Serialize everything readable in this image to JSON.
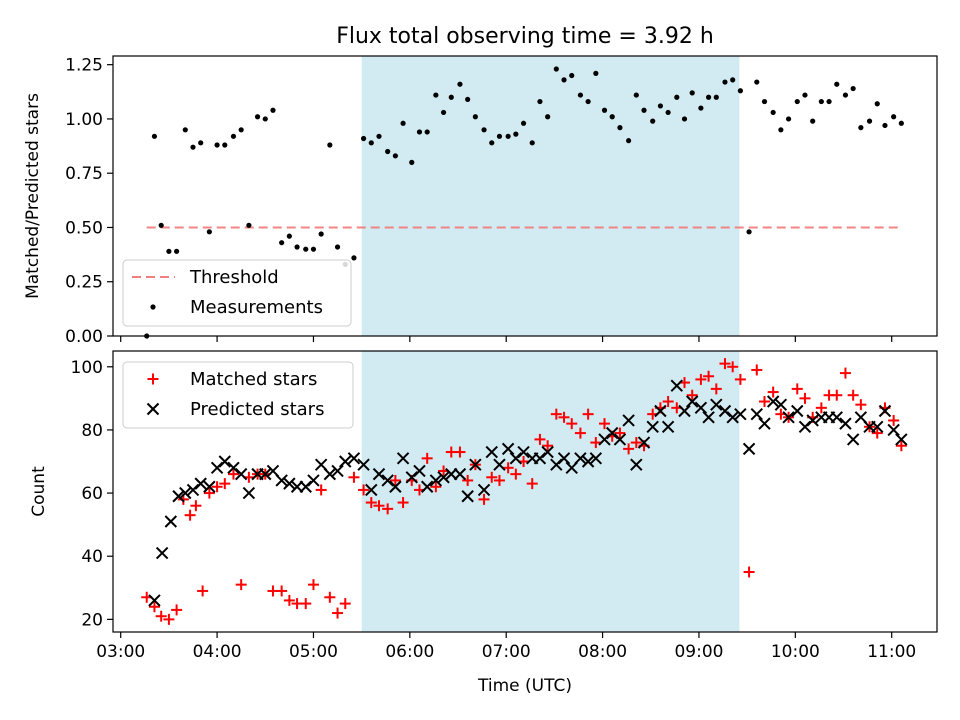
{
  "chart_data": {
    "title": "Flux total observing time = 3.92 h",
    "xlabel": "Time (UTC)",
    "x_tick_labels": [
      "03:00",
      "04:00",
      "05:00",
      "06:00",
      "07:00",
      "08:00",
      "09:00",
      "10:00",
      "11:00"
    ],
    "x_ticks_hours": [
      3,
      4,
      5,
      6,
      7,
      8,
      9,
      10,
      11
    ],
    "xlim_hours": [
      2.92,
      11.47
    ],
    "observing_window_hours": [
      5.5,
      9.42
    ],
    "shade_color": "#add8e6",
    "panels": [
      {
        "type": "scatter",
        "ylabel": "Matched/Predicted stars",
        "ylim": [
          0,
          1.29
        ],
        "y_ticks": [
          0.0,
          0.25,
          0.5,
          0.75,
          1.0,
          1.25
        ],
        "y_tick_labels": [
          "0.00",
          "0.25",
          "0.50",
          "0.75",
          "1.00",
          "1.25"
        ],
        "legend_position": "lower-left",
        "threshold": {
          "name": "Threshold",
          "value": 0.5,
          "x_range_hours": [
            3.27,
            11.08
          ],
          "color": "#f08080",
          "style": "dashed"
        },
        "series": [
          {
            "name": "Measurements",
            "color": "#000000",
            "marker": "dot",
            "x": [
              3.27,
              3.35,
              3.42,
              3.5,
              3.58,
              3.67,
              3.75,
              3.83,
              3.92,
              4.0,
              4.08,
              4.17,
              4.25,
              4.33,
              4.42,
              4.5,
              4.58,
              4.67,
              4.75,
              4.83,
              4.92,
              5.0,
              5.08,
              5.17,
              5.25,
              5.33,
              5.42,
              5.52,
              5.6,
              5.68,
              5.77,
              5.85,
              5.93,
              6.02,
              6.1,
              6.18,
              6.27,
              6.35,
              6.43,
              6.52,
              6.6,
              6.68,
              6.77,
              6.85,
              6.93,
              7.02,
              7.1,
              7.18,
              7.27,
              7.35,
              7.43,
              7.52,
              7.6,
              7.68,
              7.77,
              7.85,
              7.93,
              8.02,
              8.1,
              8.18,
              8.27,
              8.35,
              8.43,
              8.52,
              8.6,
              8.68,
              8.77,
              8.85,
              8.93,
              9.02,
              9.1,
              9.18,
              9.27,
              9.35,
              9.43,
              9.52,
              9.6,
              9.68,
              9.77,
              9.85,
              9.93,
              10.02,
              10.1,
              10.18,
              10.27,
              10.35,
              10.43,
              10.52,
              10.6,
              10.68,
              10.77,
              10.85,
              10.93,
              11.02,
              11.1
            ],
            "y": [
              0.0,
              0.92,
              0.51,
              0.39,
              0.39,
              0.95,
              0.87,
              0.89,
              0.48,
              0.88,
              0.88,
              0.92,
              0.95,
              0.51,
              1.01,
              1.0,
              1.04,
              0.43,
              0.46,
              0.41,
              0.4,
              0.4,
              0.47,
              0.88,
              0.41,
              0.33,
              0.36,
              0.91,
              0.89,
              0.92,
              0.85,
              0.83,
              0.98,
              0.8,
              0.94,
              0.94,
              1.11,
              1.03,
              1.1,
              1.16,
              1.09,
              1.01,
              0.95,
              0.89,
              0.92,
              0.92,
              0.93,
              0.98,
              0.89,
              1.08,
              1.01,
              1.23,
              1.18,
              1.2,
              1.11,
              1.08,
              1.21,
              1.04,
              1.01,
              0.96,
              0.9,
              1.11,
              1.04,
              0.99,
              1.06,
              1.03,
              1.1,
              1.0,
              1.12,
              1.05,
              1.1,
              1.1,
              1.17,
              1.18,
              1.13,
              0.48,
              1.17,
              1.08,
              1.03,
              0.95,
              1.0,
              1.08,
              1.11,
              0.99,
              1.08,
              1.08,
              1.16,
              1.11,
              1.14,
              0.96,
              0.99,
              1.07,
              0.97,
              1.01,
              0.98
            ]
          }
        ]
      },
      {
        "type": "scatter",
        "ylabel": "Count",
        "ylim": [
          16,
          105
        ],
        "y_ticks": [
          20,
          40,
          60,
          80,
          100
        ],
        "y_tick_labels": [
          "20",
          "40",
          "60",
          "80",
          "100"
        ],
        "legend_position": "upper-left",
        "series": [
          {
            "name": "Matched stars",
            "color": "#ff0000",
            "marker": "plus",
            "x": [
              3.27,
              3.35,
              3.42,
              3.5,
              3.58,
              3.65,
              3.72,
              3.78,
              3.85,
              3.92,
              4.0,
              4.08,
              4.17,
              4.25,
              4.33,
              4.42,
              4.5,
              4.58,
              4.67,
              4.75,
              4.83,
              4.92,
              5.0,
              5.08,
              5.17,
              5.25,
              5.33,
              5.42,
              5.52,
              5.6,
              5.68,
              5.77,
              5.85,
              5.93,
              6.02,
              6.1,
              6.18,
              6.27,
              6.35,
              6.43,
              6.52,
              6.6,
              6.68,
              6.77,
              6.85,
              6.93,
              7.02,
              7.1,
              7.18,
              7.27,
              7.35,
              7.43,
              7.52,
              7.6,
              7.68,
              7.77,
              7.85,
              7.93,
              8.02,
              8.1,
              8.18,
              8.27,
              8.35,
              8.43,
              8.52,
              8.6,
              8.68,
              8.77,
              8.85,
              8.93,
              9.02,
              9.1,
              9.18,
              9.27,
              9.35,
              9.43,
              9.52,
              9.6,
              9.68,
              9.77,
              9.85,
              9.93,
              10.02,
              10.1,
              10.18,
              10.27,
              10.35,
              10.43,
              10.52,
              10.6,
              10.68,
              10.77,
              10.85,
              10.93,
              11.02,
              11.1
            ],
            "y": [
              27,
              24,
              21,
              20,
              23,
              58,
              53,
              56,
              29,
              60,
              62,
              63,
              66,
              31,
              65,
              66,
              66,
              29,
              29,
              26,
              25,
              25,
              31,
              61,
              27,
              22,
              25,
              65,
              61,
              57,
              56,
              55,
              64,
              57,
              64,
              61,
              71,
              62,
              67,
              73,
              73,
              64,
              69,
              58,
              65,
              64,
              68,
              66,
              70,
              63,
              77,
              75,
              85,
              84,
              82,
              79,
              85,
              76,
              82,
              78,
              79,
              74,
              76,
              75,
              85,
              87,
              89,
              87,
              95,
              91,
              96,
              97,
              93,
              101,
              100,
              96,
              35,
              99,
              89,
              92,
              85,
              84,
              93,
              90,
              84,
              87,
              91,
              91,
              98,
              91,
              88,
              81,
              79,
              87,
              83,
              75
            ]
          },
          {
            "name": "Predicted stars",
            "color": "#000000",
            "marker": "cross",
            "x": [
              3.35,
              3.43,
              3.52,
              3.6,
              3.67,
              3.75,
              3.83,
              3.92,
              4.0,
              4.08,
              4.17,
              4.25,
              4.33,
              4.42,
              4.5,
              4.58,
              4.67,
              4.75,
              4.83,
              4.92,
              5.0,
              5.08,
              5.17,
              5.25,
              5.33,
              5.42,
              5.52,
              5.6,
              5.68,
              5.77,
              5.85,
              5.93,
              6.02,
              6.1,
              6.18,
              6.27,
              6.35,
              6.43,
              6.52,
              6.6,
              6.68,
              6.77,
              6.85,
              6.93,
              7.02,
              7.1,
              7.18,
              7.27,
              7.35,
              7.43,
              7.52,
              7.6,
              7.68,
              7.77,
              7.85,
              7.93,
              8.02,
              8.1,
              8.18,
              8.27,
              8.35,
              8.43,
              8.52,
              8.6,
              8.68,
              8.77,
              8.85,
              8.93,
              9.02,
              9.1,
              9.18,
              9.27,
              9.35,
              9.43,
              9.52,
              9.6,
              9.68,
              9.77,
              9.85,
              9.93,
              10.02,
              10.1,
              10.18,
              10.27,
              10.35,
              10.43,
              10.52,
              10.6,
              10.68,
              10.77,
              10.85,
              10.93,
              11.02,
              11.1
            ],
            "y": [
              26,
              41,
              51,
              59,
              60,
              61,
              63,
              62,
              68,
              70,
              68,
              66,
              60,
              66,
              66,
              67,
              64,
              63,
              62,
              62,
              64,
              69,
              66,
              67,
              70,
              71,
              69,
              61,
              66,
              64,
              62,
              71,
              65,
              67,
              62,
              64,
              65,
              66,
              66,
              59,
              69,
              61,
              73,
              69,
              74,
              71,
              73,
              71,
              71,
              73,
              69,
              71,
              68,
              71,
              70,
              71,
              77,
              79,
              77,
              83,
              69,
              76,
              81,
              86,
              81,
              94,
              86,
              89,
              87,
              84,
              88,
              86,
              84,
              85,
              74,
              85,
              82,
              89,
              88,
              84,
              86,
              81,
              83,
              84,
              84,
              84,
              82,
              77,
              84,
              81,
              81,
              86,
              80,
              77
            ]
          }
        ]
      }
    ]
  }
}
